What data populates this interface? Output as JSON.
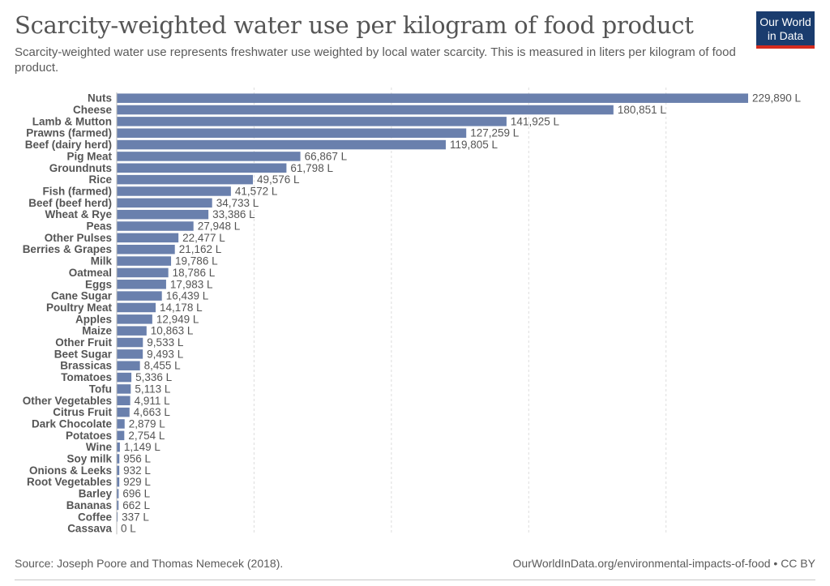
{
  "header": {
    "title": "Scarcity-weighted water use per kilogram of food product",
    "subtitle": "Scarcity-weighted water use represents freshwater use weighted by local water scarcity. This is measured in liters per kilogram of food product.",
    "logo_line1": "Our World",
    "logo_line2": "in Data"
  },
  "footer": {
    "source": "Source: Joseph Poore and Thomas Nemecek (2018).",
    "link": "OurWorldInData.org/environmental-impacts-of-food • CC BY"
  },
  "colors": {
    "bar": "#6a80ad",
    "grid": "#dddddd",
    "logo_bg": "#1a3c6e",
    "logo_accent": "#d42b1e"
  },
  "chart_data": {
    "type": "bar",
    "orientation": "horizontal",
    "title": "Scarcity-weighted water use per kilogram of food product",
    "unit_suffix": " L",
    "xlim": [
      0,
      229890
    ],
    "grid": true,
    "categories": [
      "Nuts",
      "Cheese",
      "Lamb & Mutton",
      "Prawns (farmed)",
      "Beef (dairy herd)",
      "Pig Meat",
      "Groundnuts",
      "Rice",
      "Fish (farmed)",
      "Beef (beef herd)",
      "Wheat & Rye",
      "Peas",
      "Other Pulses",
      "Berries & Grapes",
      "Milk",
      "Oatmeal",
      "Eggs",
      "Cane Sugar",
      "Poultry Meat",
      "Apples",
      "Maize",
      "Other Fruit",
      "Beet Sugar",
      "Brassicas",
      "Tomatoes",
      "Tofu",
      "Other Vegetables",
      "Citrus Fruit",
      "Dark Chocolate",
      "Potatoes",
      "Wine",
      "Soy milk",
      "Onions & Leeks",
      "Root Vegetables",
      "Barley",
      "Bananas",
      "Coffee",
      "Cassava"
    ],
    "values": [
      229890,
      180851,
      141925,
      127259,
      119805,
      66867,
      61798,
      49576,
      41572,
      34733,
      33386,
      27948,
      22477,
      21162,
      19786,
      18786,
      17983,
      16439,
      14178,
      12949,
      10863,
      9533,
      9493,
      8455,
      5336,
      5113,
      4911,
      4663,
      2879,
      2754,
      1149,
      956,
      932,
      929,
      696,
      662,
      337,
      0
    ],
    "value_labels": [
      "229,890 L",
      "180,851 L",
      "141,925 L",
      "127,259 L",
      "119,805 L",
      "66,867 L",
      "61,798 L",
      "49,576 L",
      "41,572 L",
      "34,733 L",
      "33,386 L",
      "27,948 L",
      "22,477 L",
      "21,162 L",
      "19,786 L",
      "18,786 L",
      "17,983 L",
      "16,439 L",
      "14,178 L",
      "12,949 L",
      "10,863 L",
      "9,533 L",
      "9,493 L",
      "8,455 L",
      "5,336 L",
      "5,113 L",
      "4,911 L",
      "4,663 L",
      "2,879 L",
      "2,754 L",
      "1,149 L",
      "956 L",
      "932 L",
      "929 L",
      "696 L",
      "662 L",
      "337 L",
      "0 L"
    ]
  }
}
